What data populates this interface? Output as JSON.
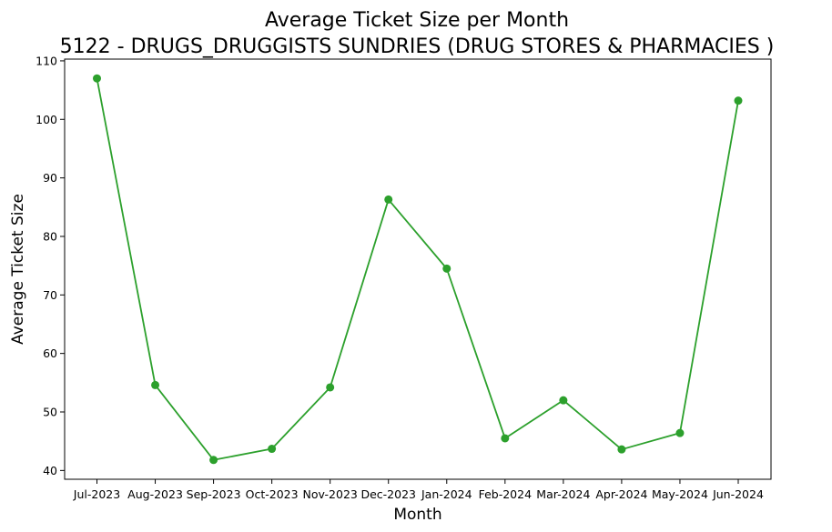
{
  "chart_data": {
    "type": "line",
    "title": "Average Ticket Size per Month",
    "subtitle": "5122 - DRUGS_DRUGGISTS SUNDRIES (DRUG STORES & PHARMACIES )",
    "xlabel": "Month",
    "ylabel": "Average Ticket Size",
    "categories": [
      "Jul-2023",
      "Aug-2023",
      "Sep-2023",
      "Oct-2023",
      "Nov-2023",
      "Dec-2023",
      "Jan-2024",
      "Feb-2024",
      "Mar-2024",
      "Apr-2024",
      "May-2024",
      "Jun-2024"
    ],
    "series": [
      {
        "values": [
          107.0,
          54.6,
          41.8,
          43.7,
          54.2,
          86.3,
          74.5,
          45.5,
          52.0,
          43.6,
          46.4,
          103.2
        ],
        "color": "#2ca02c",
        "marker": "circle"
      }
    ],
    "ylim": [
      38.5,
      110.3
    ],
    "yticks": [
      40,
      50,
      60,
      70,
      80,
      90,
      100,
      110
    ],
    "grid": false,
    "legend": "none"
  }
}
